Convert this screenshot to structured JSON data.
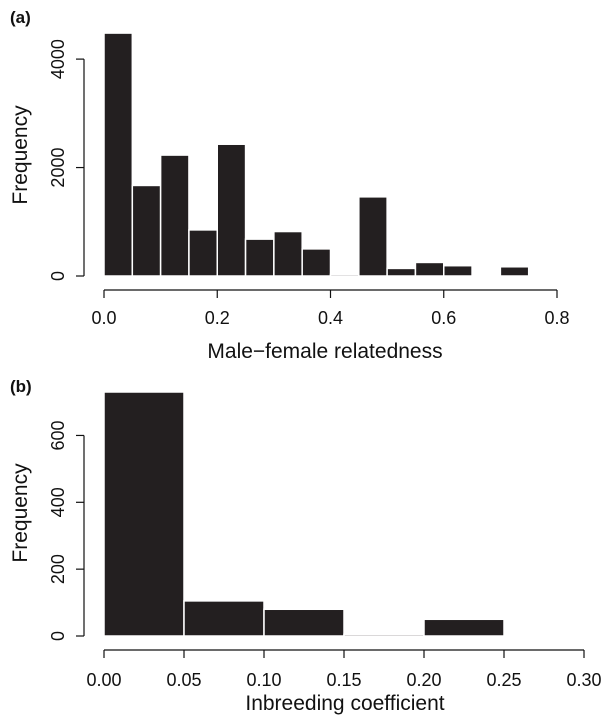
{
  "chart_data": [
    {
      "type": "bar",
      "panel_label": "(a)",
      "xlabel": "Male−female relatedness",
      "ylabel": "Frequency",
      "xlim": [
        0.0,
        0.8
      ],
      "ylim": [
        0,
        4500
      ],
      "xticks": [
        0.0,
        0.2,
        0.4,
        0.6,
        0.8
      ],
      "xtick_labels": [
        "0.0",
        "0.2",
        "0.4",
        "0.6",
        "0.8"
      ],
      "yticks": [
        0,
        2000,
        4000
      ],
      "ytick_labels": [
        "0",
        "2000",
        "4000"
      ],
      "bin_edges": [
        0.0,
        0.05,
        0.1,
        0.15,
        0.2,
        0.25,
        0.3,
        0.35,
        0.4,
        0.45,
        0.5,
        0.55,
        0.6,
        0.65,
        0.7,
        0.75
      ],
      "values": [
        4480,
        1670,
        2230,
        850,
        2430,
        680,
        820,
        500,
        30,
        1460,
        140,
        250,
        190,
        0,
        170
      ]
    },
    {
      "type": "bar",
      "panel_label": "(b)",
      "xlabel": "Inbreeding coefficient",
      "ylabel": "Frequency",
      "xlim": [
        0.0,
        0.3
      ],
      "ylim": [
        0,
        730
      ],
      "xticks": [
        0.0,
        0.05,
        0.1,
        0.15,
        0.2,
        0.25,
        0.3
      ],
      "xtick_labels": [
        "0.00",
        "0.05",
        "0.10",
        "0.15",
        "0.20",
        "0.25",
        "0.30"
      ],
      "yticks": [
        0,
        200,
        400,
        600
      ],
      "ytick_labels": [
        "0",
        "200",
        "400",
        "600"
      ],
      "bin_edges": [
        0.0,
        0.05,
        0.1,
        0.15,
        0.2,
        0.25
      ],
      "values": [
        730,
        105,
        80,
        5,
        50
      ]
    }
  ]
}
